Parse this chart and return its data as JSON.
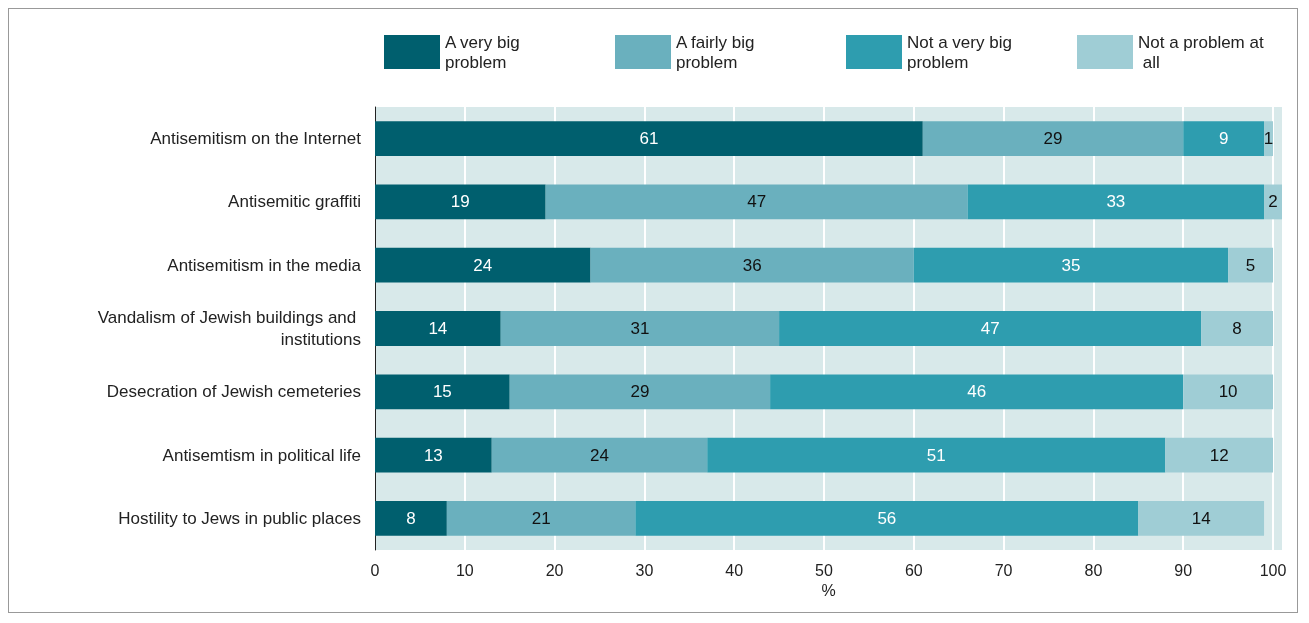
{
  "chart_data": {
    "type": "bar",
    "orientation": "horizontal",
    "stacked": true,
    "xlabel": "%",
    "categories": [
      "Antisemitism on the Internet",
      "Antisemitic graffiti",
      "Antisemitism in the media",
      "Vandalism of Jewish buildings and institutions",
      "Desecration of Jewish cemeteries",
      "Antisemtism in political life",
      "Hostility to Jews in public places"
    ],
    "series": [
      {
        "name": "A very big problem",
        "color": "#005f6e",
        "values": [
          61,
          19,
          24,
          14,
          15,
          13,
          8
        ]
      },
      {
        "name": "A fairly big problem",
        "color": "#6ab0be",
        "values": [
          29,
          47,
          36,
          31,
          29,
          24,
          21
        ]
      },
      {
        "name": "Not a very big problem",
        "color": "#2e9daf",
        "values": [
          9,
          33,
          35,
          47,
          46,
          51,
          56
        ]
      },
      {
        "name": "Not a problem at all",
        "color": "#9fcdd5",
        "values": [
          1,
          2,
          5,
          8,
          10,
          12,
          14
        ]
      }
    ],
    "xlim": [
      0,
      101
    ],
    "xticks": [
      0,
      10,
      20,
      30,
      40,
      50,
      60,
      70,
      80,
      90,
      100
    ],
    "grid": "x",
    "legend": "top",
    "data_labels": true
  }
}
